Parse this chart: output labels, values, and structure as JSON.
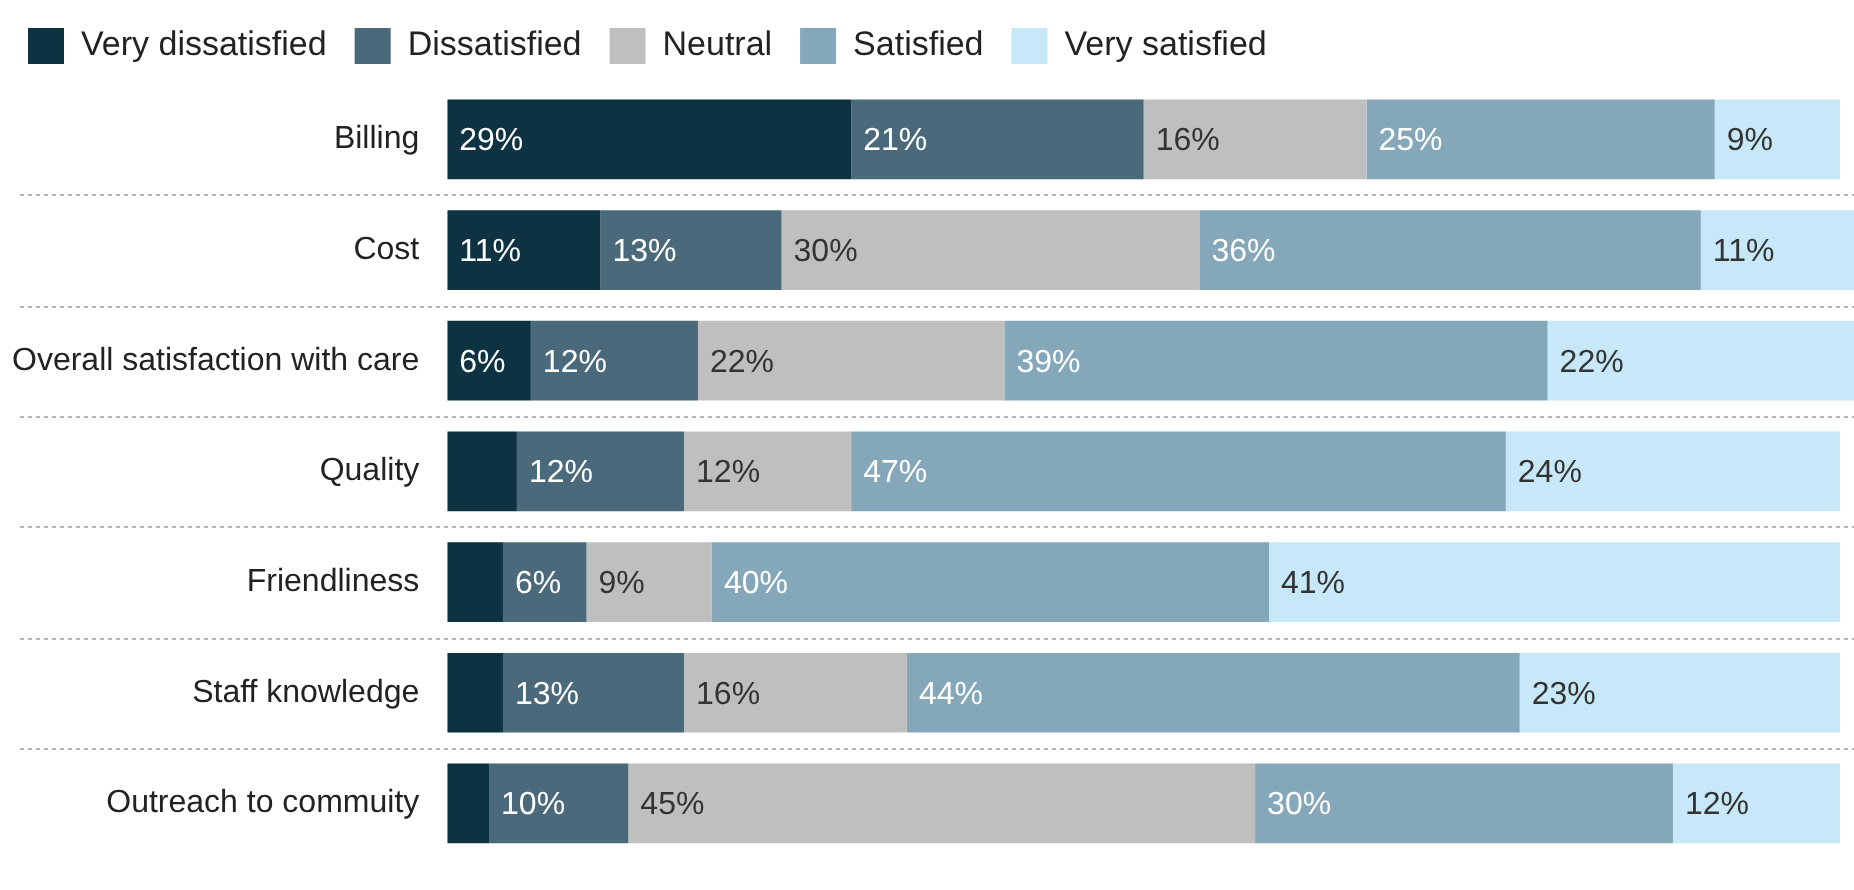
{
  "chart_data": {
    "type": "bar",
    "orientation": "horizontal",
    "stacked": true,
    "categories": [
      "Billing",
      "Cost",
      "Overall satisfaction with care",
      "Quality",
      "Friendliness",
      "Staff knowledge",
      "Outreach to commuity"
    ],
    "series": [
      {
        "name": "Very dissatisfied",
        "color": "#0d3242",
        "values": [
          29,
          11,
          6,
          5,
          4,
          4,
          3
        ],
        "value_labels": [
          "29%",
          "11%",
          "6%",
          null,
          null,
          null,
          null
        ]
      },
      {
        "name": "Dissatisfied",
        "color": "#4a6a7b",
        "values": [
          21,
          13,
          12,
          12,
          6,
          13,
          10
        ],
        "value_labels": [
          "21%",
          "13%",
          "12%",
          "12%",
          "6%",
          "13%",
          "10%"
        ]
      },
      {
        "name": "Neutral",
        "color": "#bfbfbf",
        "values": [
          16,
          30,
          22,
          12,
          9,
          16,
          45
        ],
        "value_labels": [
          "16%",
          "30%",
          "22%",
          "12%",
          "9%",
          "16%",
          "45%"
        ]
      },
      {
        "name": "Satisfied",
        "color": "#84a8ba",
        "values": [
          25,
          36,
          39,
          47,
          40,
          44,
          30
        ],
        "value_labels": [
          "25%",
          "36%",
          "39%",
          "47%",
          "40%",
          "44%",
          "30%"
        ]
      },
      {
        "name": "Very satisfied",
        "color": "#c6e8f8",
        "values": [
          9,
          11,
          22,
          24,
          41,
          23,
          12
        ],
        "value_labels": [
          "9%",
          "11%",
          "22%",
          "24%",
          "41%",
          "23%",
          "12%"
        ]
      }
    ],
    "xlim": [
      0,
      101
    ],
    "tick_labels": "y",
    "grid": "y",
    "legend": "top left"
  }
}
